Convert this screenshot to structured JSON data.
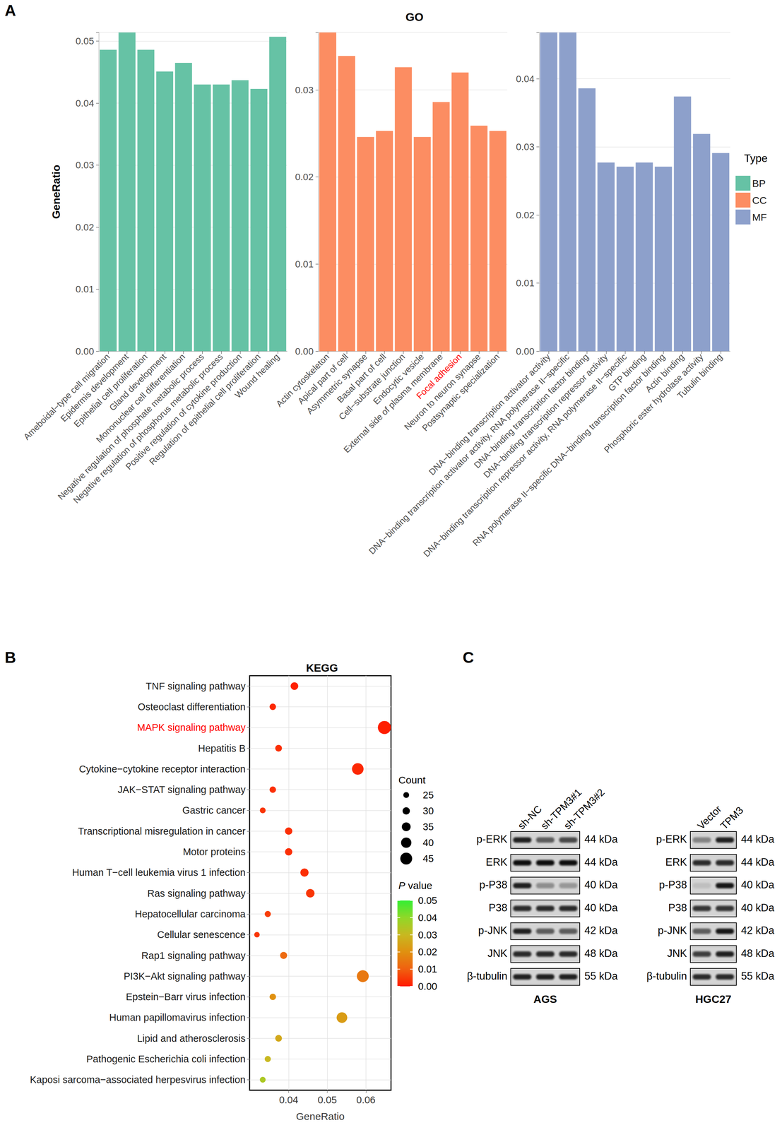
{
  "chart_data": [
    {
      "type": "bar",
      "ylabel": "GeneRatio",
      "categories": [
        "Ameboidal−type cell migration",
        "Epidermis development",
        "Epithelial cell proliferation",
        "Gland development",
        "Mononuclear cell differentiation",
        "Negative regulation of phosphate metabolic process",
        "Negative regulation of phosphorus metabolic process",
        "Positive regulation of cytokine production",
        "Regulation of epithelial cell proliferation",
        "Wound healing"
      ],
      "series": [
        {
          "name": "BP",
          "color": "#66c2a5",
          "values": [
            0.0486,
            0.0514,
            0.0486,
            0.0451,
            0.0465,
            0.043,
            0.043,
            0.0437,
            0.0423,
            0.0507
          ]
        }
      ],
      "ylim": [
        0,
        0.0514
      ],
      "yticks": [
        {
          "value": 0,
          "label": "0.00"
        },
        0.01,
        0.02,
        0.03,
        0.04,
        0.05
      ],
      "grid": true
    },
    {
      "type": "bar",
      "title": "GO",
      "categories": [
        "Actin cytoskeleton",
        "Apical part of cell",
        "Asymmetric synapse",
        "Basal part of cell",
        "Cell−substrate junction",
        "Endocytic vesicle",
        "External side of plasma membrane",
        "Focal adhesion",
        "Neuron to neuron synapse",
        "Postsynaptic specialization"
      ],
      "series": [
        {
          "name": "CC",
          "color": "#fc8d62",
          "values": [
            0.0366,
            0.0339,
            0.0246,
            0.0253,
            0.0326,
            0.0246,
            0.0286,
            0.032,
            0.0259,
            0.0253
          ]
        }
      ],
      "ylim": [
        0,
        0.0366
      ],
      "yticks": [
        {
          "value": 0,
          "label": "0.00"
        },
        0.01,
        0.02,
        0.03
      ],
      "grid": true
    },
    {
      "type": "bar",
      "legend": "right",
      "legend_title": "Type",
      "categories": [
        "DNA−binding transcription activator activity",
        "DNA−binding transcription activator activity, RNA polymerase II−specific",
        "DNA−binding transcription factor binding",
        "DNA−binding transcription repressor activity",
        "DNA−binding transcription repressor activity, RNA polymerase II−specific",
        "GTP binding",
        "RNA polymerase II−specific DNA−binding transcription factor binding",
        "Actin binding",
        "Phosphoric ester hydrolase activity",
        "Tubulin binding"
      ],
      "series": [
        {
          "name": "MF",
          "color": "#8da0cb",
          "values": [
            0.0468,
            0.0468,
            0.0386,
            0.0277,
            0.0271,
            0.0277,
            0.0271,
            0.0374,
            0.0319,
            0.0291
          ]
        }
      ],
      "ylim": [
        0,
        0.0468
      ],
      "yticks": [
        {
          "value": 0,
          "label": "0.00"
        },
        0.01,
        0.02,
        0.03,
        0.04
      ],
      "grid": true
    },
    {
      "type": "scatter",
      "title": "KEGG",
      "xlabel": "GeneRatio",
      "categories": [
        "TNF signaling pathway",
        "Osteoclast differentiation",
        "MAPK signaling pathway",
        "Hepatitis B",
        "Cytokine−cytokine receptor interaction",
        "JAK−STAT signaling pathway",
        "Gastric cancer",
        "Transcriptional misregulation in cancer",
        "Motor proteins",
        "Human T−cell leukemia virus 1 infection",
        "Ras signaling pathway",
        "Hepatocellular carcinoma",
        "Cellular senescence",
        "Rap1 signaling pathway",
        "PI3K−Akt signaling pathway",
        "Epstein−Barr virus infection",
        "Human papillomavirus infection",
        "Lipid and atherosclerosis",
        "Pathogenic Escherichia coli infection",
        "Kaposi sarcoma−associated herpesvirus infection"
      ],
      "x": [
        0.0415,
        0.0359,
        0.0648,
        0.0374,
        0.0579,
        0.0359,
        0.0333,
        0.04,
        0.04,
        0.0441,
        0.0456,
        0.0346,
        0.0318,
        0.0387,
        0.0592,
        0.0359,
        0.0538,
        0.0374,
        0.0346,
        0.0333
      ],
      "counts": [
        31,
        27,
        49,
        28,
        44,
        27,
        25,
        30,
        30,
        33,
        34,
        26,
        24,
        29,
        45,
        27,
        41,
        28,
        26,
        25
      ],
      "p_values": [
        0.001,
        0.002,
        0.0005,
        0.003,
        0.002,
        0.003,
        0.004,
        0.003,
        0.003,
        0.003,
        0.004,
        0.005,
        0.004,
        0.012,
        0.015,
        0.02,
        0.023,
        0.026,
        0.03,
        0.035
      ],
      "xlim": [
        0.0299,
        0.0665
      ],
      "xticks": [
        0.04,
        0.05,
        0.06
      ],
      "grid": true,
      "size_legend": {
        "title": "Count",
        "values": [
          25,
          30,
          35,
          40,
          45
        ]
      },
      "color_bar": {
        "title": "P value",
        "range": [
          0,
          0.05
        ],
        "ticks": [
          0.05,
          0.04,
          0.03,
          0.02,
          0.01,
          {
            "value": 0,
            "label": "0.00"
          }
        ]
      }
    }
  ],
  "panel_labels": [
    "A",
    "B",
    "C"
  ],
  "blots": {
    "groups": [
      {
        "cell_line": "AGS",
        "lanes": [
          "sh-NC",
          "sh-TPM3#1",
          "sh-TPM3#2"
        ],
        "rows": [
          {
            "protein": "p-ERK",
            "size": "44 kDa",
            "bands": [
              0.9,
              0.6,
              0.7
            ]
          },
          {
            "protein": "ERK",
            "size": "44 kDa",
            "bands": [
              1,
              1,
              1
            ]
          },
          {
            "protein": "p-P38",
            "size": "40 kDa",
            "bands": [
              0.9,
              0.35,
              0.3
            ]
          },
          {
            "protein": "P38",
            "size": "40 kDa",
            "bands": [
              0.85,
              0.85,
              0.85
            ]
          },
          {
            "protein": "p-JNK",
            "size": "42 kDa",
            "bands": [
              0.9,
              0.6,
              0.6
            ]
          },
          {
            "protein": "JNK",
            "size": "48 kDa",
            "bands": [
              0.85,
              0.85,
              0.85
            ]
          },
          {
            "protein": "β-tubulin",
            "size": "55 kDa",
            "bands": [
              0.9,
              0.9,
              0.9
            ]
          }
        ]
      },
      {
        "cell_line": "HGC27",
        "lanes": [
          "Vector",
          "TPM3"
        ],
        "rows": [
          {
            "protein": "p-ERK",
            "size": "44 kDa",
            "bands": [
              0.4,
              0.9
            ]
          },
          {
            "protein": "ERK",
            "size": "44 kDa",
            "bands": [
              0.85,
              0.85
            ]
          },
          {
            "protein": "p-P38",
            "size": "40 kDa",
            "bands": [
              0.1,
              0.95
            ]
          },
          {
            "protein": "P38",
            "size": "40 kDa",
            "bands": [
              0.8,
              0.8
            ]
          },
          {
            "protein": "p-JNK",
            "size": "42 kDa",
            "bands": [
              0.6,
              0.95
            ]
          },
          {
            "protein": "JNK",
            "size": "48 kDa",
            "bands": [
              0.75,
              0.9
            ]
          },
          {
            "protein": "β-tubulin",
            "size": "55 kDa",
            "bands": [
              0.85,
              0.85
            ]
          }
        ]
      }
    ]
  }
}
